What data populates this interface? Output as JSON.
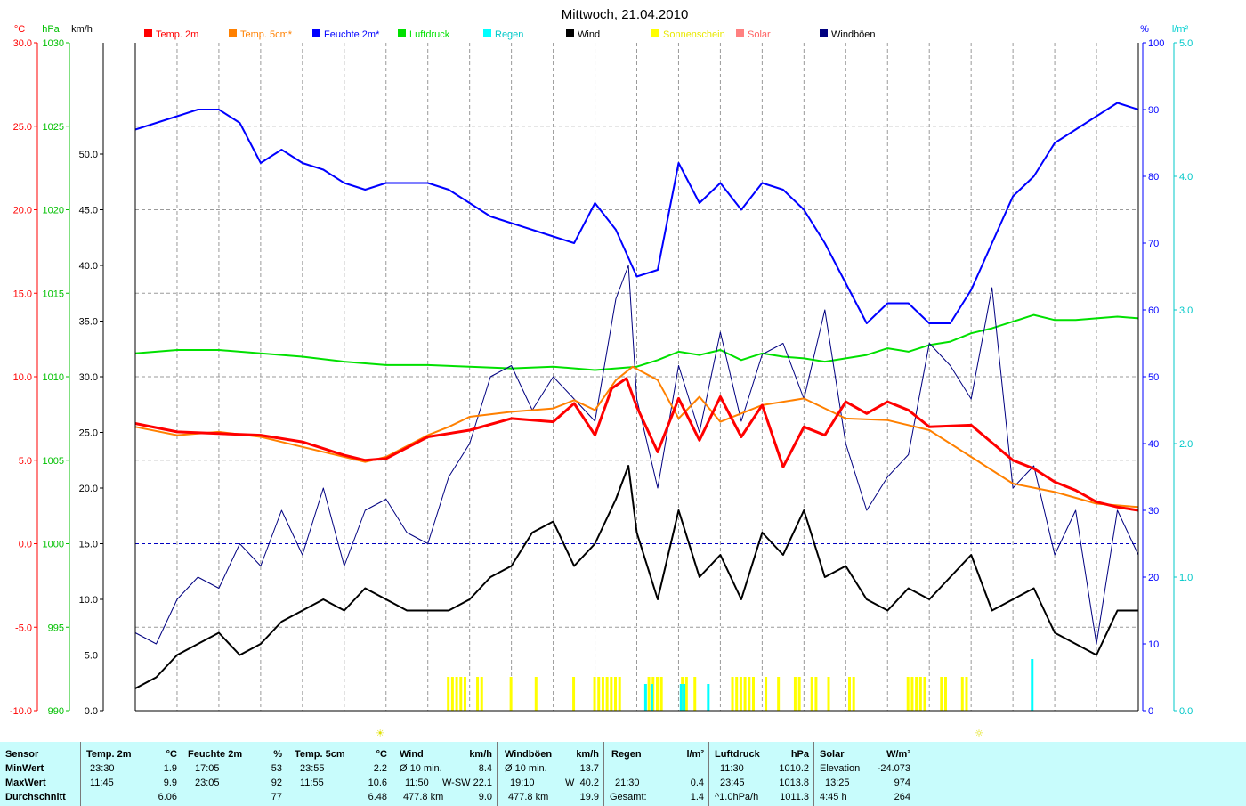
{
  "title": "Mittwoch, 21.04.2010",
  "axis_units": {
    "temp": "°C",
    "pressure": "hPa",
    "wind": "km/h",
    "humidity": "%",
    "rain": "l/m²"
  },
  "axis_ticks": {
    "temp": [
      "30.0",
      "25.0",
      "20.0",
      "15.0",
      "10.0",
      "5.0",
      "0.0",
      "-5.0",
      "-10.0"
    ],
    "pressure": [
      "1030",
      "1025",
      "1020",
      "1015",
      "1010",
      "1005",
      "1000",
      "995",
      "990"
    ],
    "wind": [
      "50.0",
      "45.0",
      "40.0",
      "35.0",
      "30.0",
      "25.0",
      "20.0",
      "15.0",
      "10.0",
      "5.0",
      "0.0"
    ],
    "humidity": [
      "100",
      "90",
      "80",
      "70",
      "60",
      "50",
      "40",
      "30",
      "20",
      "10",
      "0"
    ],
    "rain": [
      "5.0",
      "4.0",
      "3.0",
      "2.0",
      "1.0",
      "0.0"
    ]
  },
  "legend": [
    {
      "label": "Temp. 2m",
      "color": "#ff0000"
    },
    {
      "label": "Temp. 5cm*",
      "color": "#ff8000"
    },
    {
      "label": "Feuchte 2m*",
      "color": "#0000ff"
    },
    {
      "label": "Luftdruck",
      "color": "#00e000"
    },
    {
      "label": "Regen",
      "color": "#00ffff"
    },
    {
      "label": "Wind",
      "color": "#000000"
    },
    {
      "label": "Sonnenschein",
      "color": "#ffff00"
    },
    {
      "label": "Solar",
      "color": "#ff8080"
    },
    {
      "label": "Windböen",
      "color": "#000080"
    }
  ],
  "markers": {
    "sunrise": "☀",
    "sunset": "☼"
  },
  "chart_data": {
    "type": "line",
    "title": "Mittwoch, 21.04.2010",
    "x_unit": "hour of day",
    "xlim": [
      0,
      24
    ],
    "ylim": {
      "temp": [
        -10,
        30
      ],
      "pressure": [
        990,
        1030
      ],
      "wind": [
        0,
        60
      ],
      "humidity": [
        0,
        100
      ],
      "rain": [
        0,
        5
      ]
    },
    "grid": true,
    "legend_position": "top",
    "series": [
      {
        "name": "Temp. 2m",
        "axis": "temp",
        "color": "#ff0000",
        "x": [
          0,
          1,
          2,
          3,
          4,
          5,
          5.5,
          6,
          7,
          8,
          9,
          10,
          10.5,
          11,
          11.4,
          11.75,
          12,
          12.5,
          13,
          13.5,
          14,
          14.5,
          15,
          15.5,
          16,
          16.5,
          17,
          17.5,
          18,
          18.5,
          19,
          20,
          21,
          21.5,
          22,
          22.5,
          23,
          23.5,
          24
        ],
        "y": [
          7.2,
          6.7,
          6.6,
          6.5,
          6.1,
          5.3,
          5.0,
          5.1,
          6.4,
          6.8,
          7.5,
          7.3,
          8.4,
          6.5,
          9.3,
          9.9,
          8.2,
          5.5,
          8.7,
          6.2,
          8.8,
          6.4,
          8.3,
          4.6,
          7.0,
          6.5,
          8.5,
          7.8,
          8.5,
          8.0,
          7.0,
          7.1,
          5.0,
          4.5,
          3.7,
          3.2,
          2.5,
          2.2,
          2.0
        ]
      },
      {
        "name": "Temp. 5cm*",
        "axis": "temp",
        "color": "#ff8000",
        "x": [
          0,
          1,
          2,
          3,
          4,
          5,
          5.5,
          6,
          7,
          7.5,
          8,
          9,
          10,
          10.5,
          11,
          11.5,
          11.9,
          12.5,
          13,
          13.5,
          14,
          15,
          16,
          17,
          18,
          19,
          20,
          21,
          22,
          23,
          24
        ],
        "y": [
          7.0,
          6.5,
          6.7,
          6.4,
          5.8,
          5.2,
          4.9,
          5.2,
          6.5,
          7.0,
          7.6,
          7.9,
          8.1,
          8.6,
          8.0,
          9.8,
          10.6,
          9.8,
          7.5,
          8.8,
          7.3,
          8.3,
          8.7,
          7.5,
          7.4,
          6.8,
          5.2,
          3.6,
          3.1,
          2.4,
          2.2
        ]
      },
      {
        "name": "Feuchte 2m*",
        "axis": "humidity",
        "color": "#0000ff",
        "x": [
          0,
          0.5,
          1,
          1.5,
          2,
          2.5,
          3,
          3.5,
          4,
          4.5,
          5,
          5.5,
          6,
          6.5,
          7,
          7.5,
          8,
          8.5,
          9,
          9.5,
          10,
          10.5,
          11,
          11.5,
          12,
          12.5,
          13,
          13.5,
          14,
          14.5,
          15,
          15.5,
          16,
          16.5,
          17,
          17.5,
          18,
          18.5,
          19,
          19.5,
          20,
          20.5,
          21,
          21.5,
          22,
          22.5,
          23,
          23.5,
          24
        ],
        "y": [
          87,
          88,
          89,
          90,
          90,
          88,
          82,
          84,
          82,
          81,
          79,
          78,
          79,
          79,
          79,
          78,
          76,
          74,
          73,
          72,
          71,
          70,
          76,
          72,
          65,
          66,
          82,
          76,
          79,
          75,
          79,
          78,
          75,
          70,
          64,
          58,
          61,
          61,
          58,
          58,
          63,
          70,
          77,
          80,
          85,
          87,
          89,
          91,
          90
        ]
      },
      {
        "name": "Luftdruck",
        "axis": "pressure",
        "color": "#00e000",
        "x": [
          0,
          1,
          2,
          3,
          4,
          5,
          6,
          7,
          8,
          9,
          10,
          11,
          12,
          12.5,
          13,
          13.5,
          14,
          14.5,
          15,
          15.5,
          16,
          16.5,
          17,
          17.5,
          18,
          18.5,
          19,
          19.5,
          20,
          20.5,
          21,
          21.5,
          22,
          22.5,
          23,
          23.5,
          24
        ],
        "y": [
          1011.4,
          1011.6,
          1011.6,
          1011.4,
          1011.2,
          1010.9,
          1010.7,
          1010.7,
          1010.6,
          1010.5,
          1010.6,
          1010.4,
          1010.6,
          1011.0,
          1011.5,
          1011.3,
          1011.6,
          1011.0,
          1011.4,
          1011.2,
          1011.1,
          1010.9,
          1011.1,
          1011.3,
          1011.7,
          1011.5,
          1011.9,
          1012.1,
          1012.6,
          1012.9,
          1013.3,
          1013.7,
          1013.4,
          1013.4,
          1013.5,
          1013.6,
          1013.5
        ]
      },
      {
        "name": "Wind",
        "axis": "wind",
        "color": "#000000",
        "x": [
          0,
          0.5,
          1,
          1.5,
          2,
          2.5,
          3,
          3.5,
          4,
          4.5,
          5,
          5.5,
          6,
          6.5,
          7,
          7.5,
          8,
          8.5,
          9,
          9.5,
          10,
          10.5,
          11,
          11.5,
          11.8,
          12,
          12.5,
          13,
          13.5,
          14,
          14.5,
          15,
          15.5,
          16,
          16.5,
          17,
          17.5,
          18,
          18.5,
          19,
          19.5,
          20,
          20.5,
          21,
          21.5,
          22,
          22.5,
          23,
          23.5,
          24
        ],
        "y": [
          2,
          3,
          5,
          6,
          7,
          5,
          6,
          8,
          9,
          10,
          9,
          11,
          10,
          9,
          9,
          9,
          10,
          12,
          13,
          16,
          17,
          13,
          15,
          19,
          22,
          16,
          10,
          18,
          12,
          14,
          10,
          16,
          14,
          18,
          12,
          13,
          10,
          9,
          11,
          10,
          12,
          14,
          9,
          10,
          11,
          7,
          6,
          5,
          9,
          9
        ]
      },
      {
        "name": "Windböen",
        "axis": "wind",
        "color": "#000080",
        "x": [
          0,
          0.5,
          1,
          1.5,
          2,
          2.5,
          3,
          3.5,
          4,
          4.5,
          5,
          5.5,
          6,
          6.5,
          7,
          7.5,
          8,
          8.5,
          9,
          9.5,
          10,
          10.5,
          11,
          11.5,
          11.8,
          12,
          12.5,
          13,
          13.5,
          14,
          14.5,
          15,
          15.5,
          16,
          16.5,
          17,
          17.5,
          18,
          18.5,
          19,
          19.5,
          20,
          20.5,
          21,
          21.5,
          22,
          22.5,
          23,
          23.5,
          24
        ],
        "y": [
          7,
          6,
          10,
          12,
          11,
          15,
          13,
          18,
          14,
          20,
          13,
          18,
          19,
          16,
          15,
          21,
          24,
          30,
          31,
          27,
          30,
          28,
          26,
          37,
          40,
          28,
          20,
          31,
          25,
          34,
          26,
          32,
          33,
          28,
          36,
          24,
          18,
          21,
          23,
          33,
          31,
          28,
          38,
          20,
          22,
          14,
          18,
          6,
          18,
          14
        ]
      }
    ],
    "stats": {
      "headers": [
        "Sensor",
        "Temp. 2m",
        "°C",
        "Feuchte 2m",
        "%",
        "Temp. 5cm",
        "°C",
        "Wind",
        "km/h",
        "Windböen",
        "km/h",
        "Regen",
        "l/m²",
        "Luftdruck",
        "hPa",
        "Solar",
        "W/m²"
      ],
      "rows": [
        {
          "label": "MinWert",
          "temp2m_time": "23:30",
          "temp2m": "1.9",
          "feuchte_time": "17:05",
          "feuchte": "53",
          "temp5cm_time": "23:55",
          "temp5cm": "2.2",
          "wind_label": "Ø 10 min.",
          "wind": "8.4",
          "boen_label": "Ø 10 min.",
          "boen": "13.7",
          "regen_time": "",
          "regen": "",
          "druck_time": "11:30",
          "druck": "1010.2",
          "solar_label": "Elevation",
          "solar": "-24.073"
        },
        {
          "label": "MaxWert",
          "temp2m_time": "11:45",
          "temp2m": "9.9",
          "feuchte_time": "23:05",
          "feuchte": "92",
          "temp5cm_time": "11:55",
          "temp5cm": "10.6",
          "wind_time": "11:50",
          "wind_dir": "W-SW",
          "wind": "22.1",
          "boen_time": "19:10",
          "boen_dir": "W",
          "boen": "40.2",
          "regen_time": "21:30",
          "regen": "0.4",
          "druck_time": "23:45",
          "druck": "1013.8",
          "solar_time": "13:25",
          "solar": "974"
        },
        {
          "label": "Durchschnitt",
          "temp2m": "6.06",
          "feuchte": "77",
          "temp5cm": "6.48",
          "wind_km": "477.8 km",
          "wind": "9.0",
          "boen_km": "477.8 km",
          "boen": "19.9",
          "regen_label": "Gesamt:",
          "regen": "1.4",
          "druck_label": "^1.0hPa/h",
          "druck": "1011.3",
          "solar_time": "4:45 h",
          "solar": "264"
        }
      ]
    }
  }
}
